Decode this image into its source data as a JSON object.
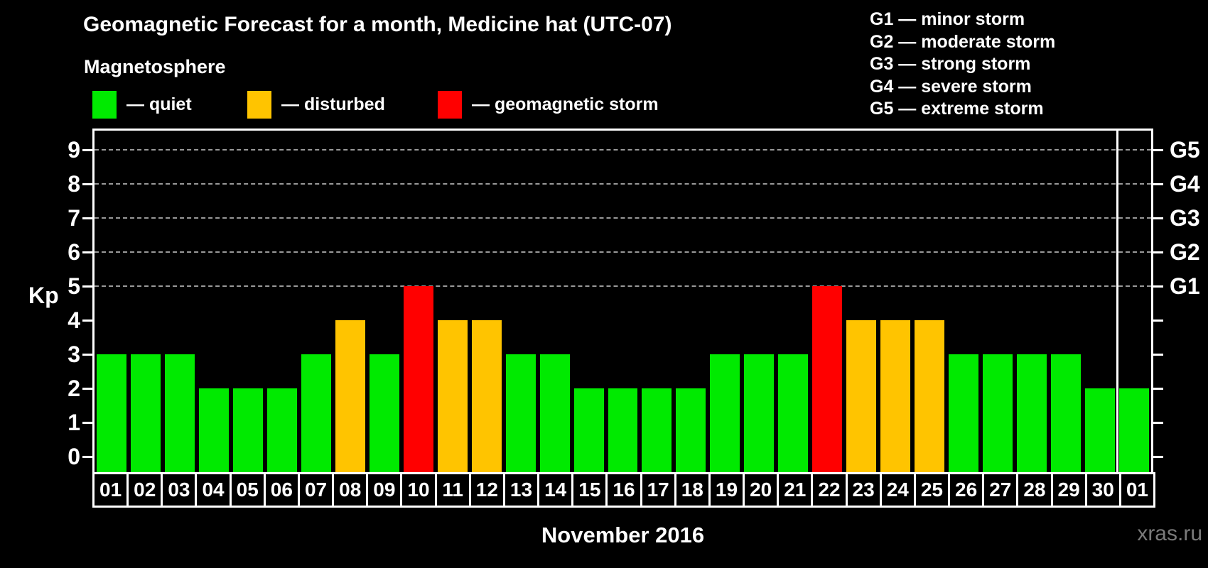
{
  "title": "Geomagnetic Forecast for a month, Medicine hat (UTC-07)",
  "subtitle": "Magnetosphere",
  "legend": {
    "items": [
      {
        "status": "quiet",
        "label": "— quiet",
        "color": "#00ea00"
      },
      {
        "status": "disturbed",
        "label": "— disturbed",
        "color": "#ffc400"
      },
      {
        "status": "storm",
        "label": "— geomagnetic storm",
        "color": "#ff0000"
      }
    ]
  },
  "storm_scale": [
    "G1 — minor storm",
    "G2 — moderate storm",
    "G3 — strong storm",
    "G4 — severe storm",
    "G5 — extreme storm"
  ],
  "axes": {
    "y_label": "Kp",
    "x_label": "November 2016"
  },
  "watermark": "xras.ru",
  "colors": {
    "background": "#000000",
    "text": "#ffffff",
    "gridline": "#999999",
    "axis": "#ffffff",
    "watermark": "#7a7a7a"
  },
  "chart_data": {
    "type": "bar",
    "title": "Geomagnetic Forecast for a month, Medicine hat (UTC-07)",
    "xlabel": "November 2016",
    "ylabel": "Kp",
    "ylim": [
      0,
      9
    ],
    "grid": "dashed horizontal lines at Kp 5-9 only",
    "legend_position": "top",
    "categories": [
      "01",
      "02",
      "03",
      "04",
      "05",
      "06",
      "07",
      "08",
      "09",
      "10",
      "11",
      "12",
      "13",
      "14",
      "15",
      "16",
      "17",
      "18",
      "19",
      "20",
      "21",
      "22",
      "23",
      "24",
      "25",
      "26",
      "27",
      "28",
      "29",
      "30",
      "01"
    ],
    "values": [
      3,
      3,
      3,
      2,
      2,
      2,
      3,
      4,
      3,
      5,
      4,
      4,
      3,
      3,
      2,
      2,
      2,
      2,
      3,
      3,
      3,
      5,
      4,
      4,
      4,
      3,
      3,
      3,
      3,
      2,
      2
    ],
    "statuses": [
      "quiet",
      "quiet",
      "quiet",
      "quiet",
      "quiet",
      "quiet",
      "quiet",
      "disturbed",
      "quiet",
      "storm",
      "disturbed",
      "disturbed",
      "quiet",
      "quiet",
      "quiet",
      "quiet",
      "quiet",
      "quiet",
      "quiet",
      "quiet",
      "quiet",
      "storm",
      "disturbed",
      "disturbed",
      "disturbed",
      "quiet",
      "quiet",
      "quiet",
      "quiet",
      "quiet",
      "quiet"
    ],
    "y_ticks": [
      0,
      1,
      2,
      3,
      4,
      5,
      6,
      7,
      8,
      9
    ],
    "gridlines_kp": [
      5,
      6,
      7,
      8,
      9
    ],
    "right_axis_labels": [
      {
        "kp": 5,
        "label": "G1"
      },
      {
        "kp": 6,
        "label": "G2"
      },
      {
        "kp": 7,
        "label": "G3"
      },
      {
        "kp": 8,
        "label": "G4"
      },
      {
        "kp": 9,
        "label": "G5"
      }
    ],
    "month_divider_after_index": 29
  }
}
